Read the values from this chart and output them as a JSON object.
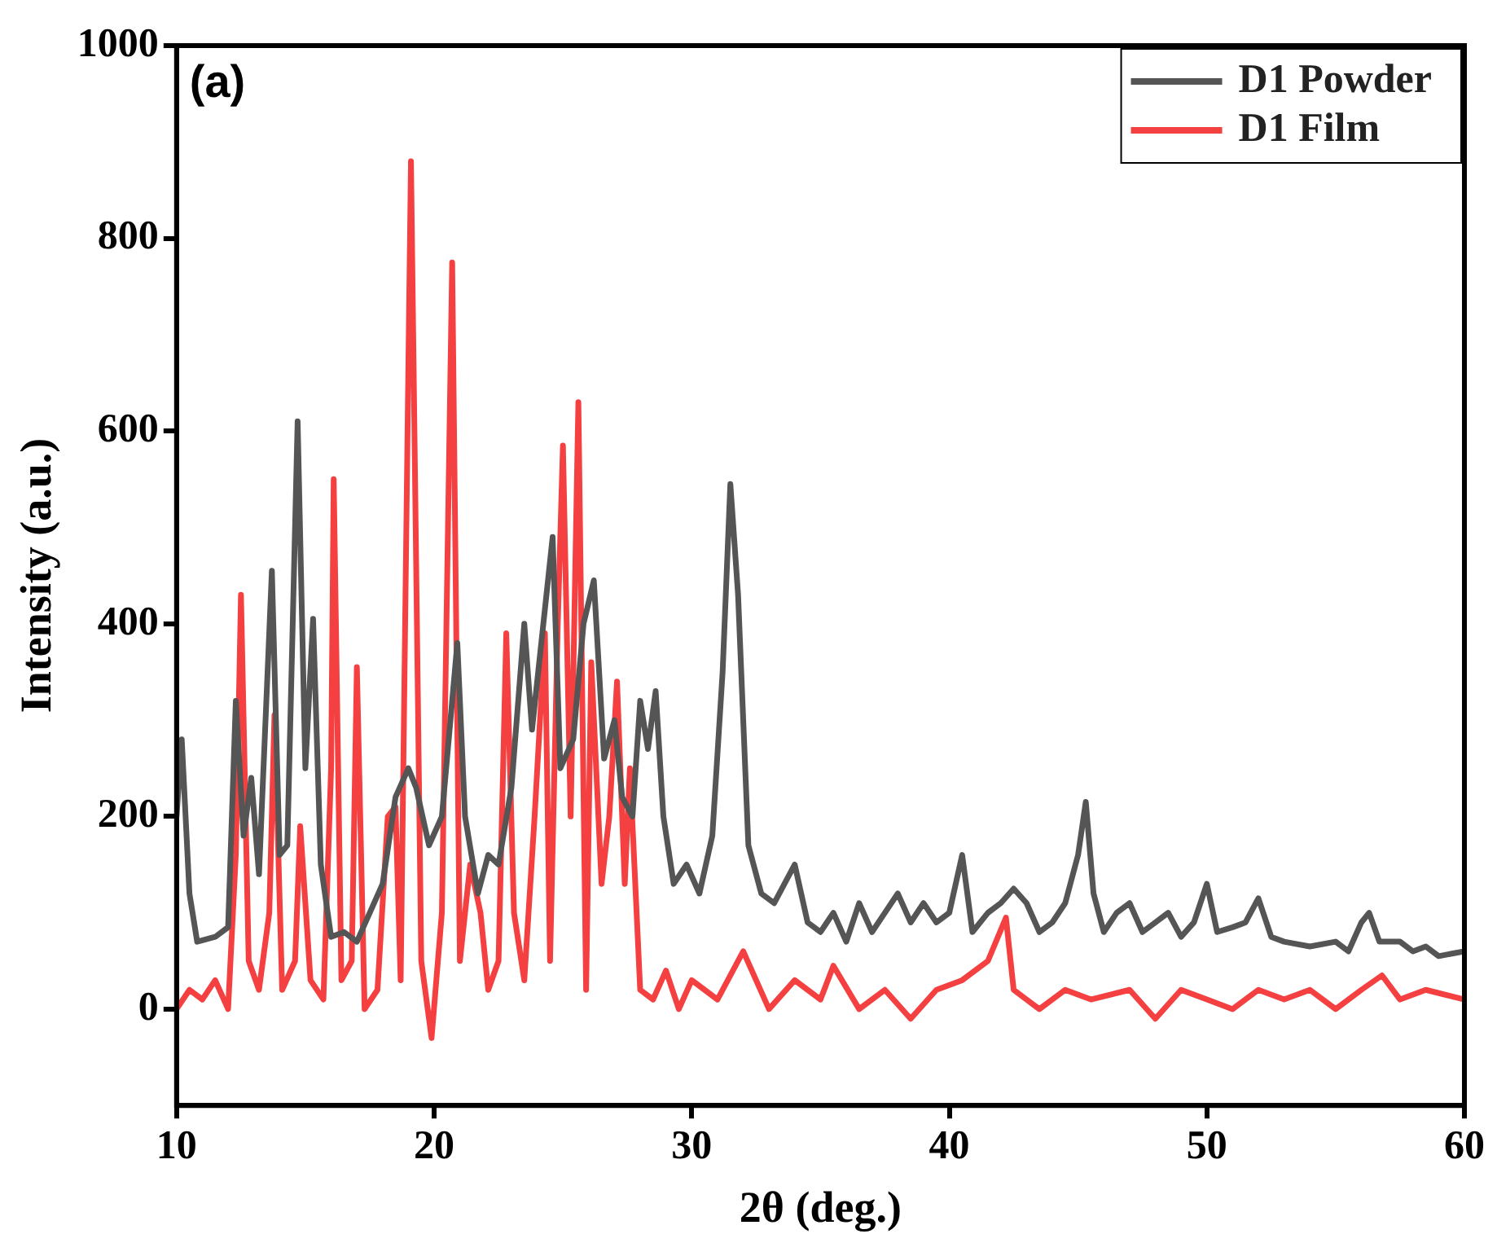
{
  "chart_data": {
    "type": "line",
    "xlabel": "2θ (deg.)",
    "ylabel": "Intensity (a.u.)",
    "annotations": [
      "(a)"
    ],
    "xlim": [
      10,
      60
    ],
    "xticks": [
      10,
      20,
      30,
      40,
      50,
      60
    ],
    "ylim": [
      -100,
      1000
    ],
    "yticks": [
      0,
      200,
      400,
      600,
      800,
      1000
    ],
    "grid": false,
    "legend": "top right",
    "marker": "none",
    "line_style": "solid",
    "series": [
      {
        "name": "D1 Powder",
        "color": "#555555",
        "x": [
          10.0,
          10.2,
          10.5,
          10.8,
          11.5,
          12.0,
          12.3,
          12.6,
          12.9,
          13.2,
          13.7,
          14.0,
          14.3,
          14.7,
          15.0,
          15.3,
          15.6,
          16.0,
          16.5,
          17.0,
          17.5,
          18.0,
          18.5,
          19.0,
          19.3,
          19.8,
          20.3,
          20.9,
          21.2,
          21.7,
          22.1,
          22.5,
          23.0,
          23.5,
          23.8,
          24.2,
          24.6,
          24.9,
          25.4,
          25.8,
          26.2,
          26.6,
          27.0,
          27.3,
          27.7,
          28.0,
          28.3,
          28.6,
          28.9,
          29.3,
          29.8,
          30.3,
          30.8,
          31.2,
          31.5,
          31.8,
          32.2,
          32.7,
          33.2,
          34.0,
          34.5,
          35.0,
          35.5,
          36.0,
          36.5,
          37.0,
          37.5,
          38.0,
          38.5,
          39.0,
          39.5,
          40.0,
          40.5,
          40.9,
          41.5,
          42.0,
          42.5,
          43.0,
          43.5,
          44.0,
          44.5,
          45.0,
          45.3,
          45.6,
          46.0,
          46.5,
          47.0,
          47.5,
          48.0,
          48.5,
          49.0,
          49.5,
          50.0,
          50.4,
          51.0,
          51.5,
          52.0,
          52.5,
          53.0,
          54.0,
          55.0,
          55.5,
          56.0,
          56.3,
          56.7,
          57.5,
          58.0,
          58.5,
          59.0,
          60.0
        ],
        "values": [
          200,
          280,
          120,
          70,
          75,
          85,
          320,
          180,
          240,
          140,
          455,
          160,
          170,
          610,
          250,
          405,
          150,
          75,
          80,
          70,
          100,
          130,
          220,
          250,
          230,
          170,
          200,
          380,
          200,
          120,
          160,
          150,
          230,
          400,
          290,
          390,
          490,
          250,
          280,
          400,
          445,
          260,
          300,
          220,
          200,
          320,
          270,
          330,
          200,
          130,
          150,
          120,
          180,
          350,
          545,
          430,
          170,
          120,
          110,
          150,
          90,
          80,
          100,
          70,
          110,
          80,
          100,
          120,
          90,
          110,
          90,
          100,
          160,
          80,
          100,
          110,
          125,
          110,
          80,
          90,
          110,
          160,
          215,
          120,
          80,
          100,
          110,
          80,
          90,
          100,
          75,
          90,
          130,
          80,
          85,
          90,
          115,
          75,
          70,
          65,
          70,
          60,
          90,
          100,
          70,
          70,
          60,
          65,
          55,
          60
        ]
      },
      {
        "name": "D1 Film",
        "color": "#f44040",
        "x": [
          10.0,
          10.5,
          11.0,
          11.5,
          12.0,
          12.3,
          12.5,
          12.8,
          13.2,
          13.6,
          13.8,
          14.1,
          14.6,
          14.8,
          15.2,
          15.7,
          16.0,
          16.1,
          16.4,
          16.8,
          17.0,
          17.3,
          17.8,
          18.2,
          18.5,
          18.7,
          19.1,
          19.5,
          19.9,
          20.3,
          20.7,
          21.0,
          21.4,
          21.8,
          22.1,
          22.5,
          22.8,
          23.1,
          23.5,
          23.9,
          24.3,
          24.5,
          24.8,
          25.0,
          25.3,
          25.6,
          25.9,
          26.1,
          26.5,
          26.8,
          27.1,
          27.4,
          27.6,
          28.0,
          28.5,
          29.0,
          29.5,
          30.0,
          31.0,
          32.0,
          33.0,
          34.0,
          35.0,
          35.5,
          36.5,
          37.5,
          38.5,
          39.5,
          40.5,
          41.5,
          42.2,
          42.5,
          43.5,
          44.5,
          45.5,
          47.0,
          48.0,
          49.0,
          50.0,
          51.0,
          52.0,
          53.0,
          54.0,
          55.0,
          56.0,
          56.8,
          57.5,
          58.5,
          60.0
        ],
        "values": [
          0,
          20,
          10,
          30,
          0,
          160,
          430,
          50,
          20,
          100,
          305,
          20,
          50,
          190,
          30,
          10,
          250,
          550,
          30,
          50,
          355,
          0,
          20,
          200,
          210,
          30,
          880,
          50,
          -30,
          100,
          775,
          50,
          150,
          100,
          20,
          50,
          390,
          100,
          30,
          200,
          390,
          50,
          400,
          585,
          200,
          630,
          20,
          360,
          130,
          200,
          340,
          130,
          250,
          20,
          10,
          40,
          0,
          30,
          10,
          60,
          0,
          30,
          10,
          45,
          0,
          20,
          -10,
          20,
          30,
          50,
          95,
          20,
          0,
          20,
          10,
          20,
          -10,
          20,
          10,
          0,
          20,
          10,
          20,
          0,
          20,
          35,
          10,
          20,
          10
        ]
      }
    ]
  }
}
